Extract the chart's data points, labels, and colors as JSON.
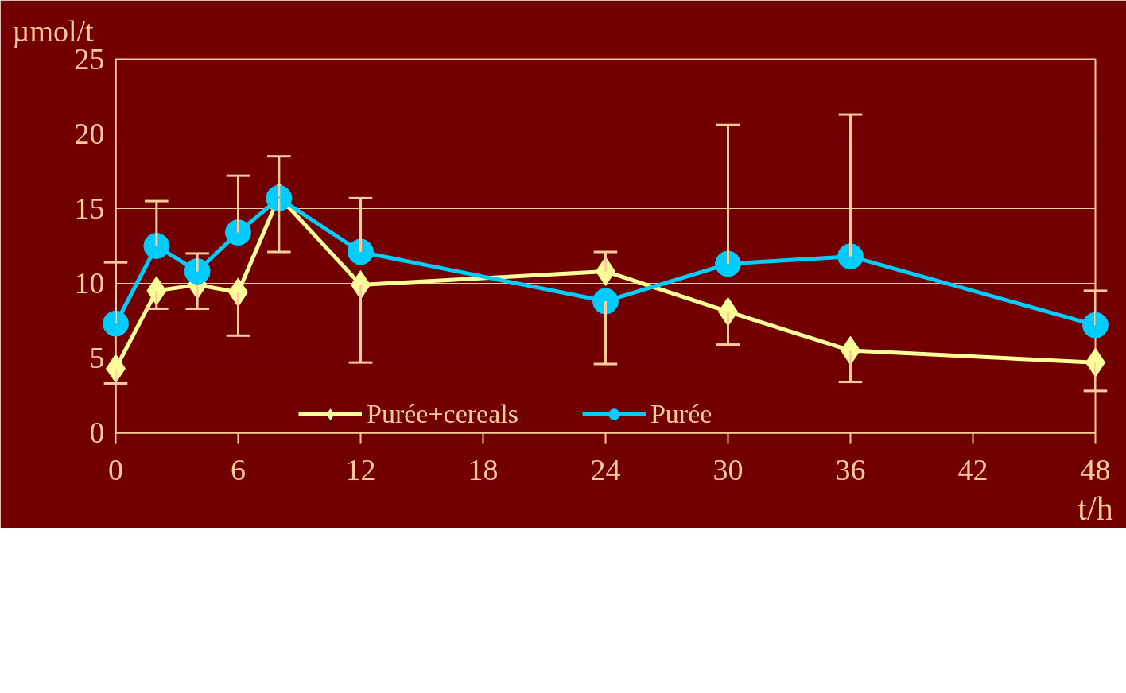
{
  "chart_data": {
    "type": "line",
    "xlabel": "t/h",
    "ylabel": "µmol/t",
    "x": [
      0,
      2,
      4,
      6,
      8,
      12,
      24,
      30,
      36,
      48
    ],
    "xlim": [
      0,
      48
    ],
    "xticks": [
      0,
      6,
      12,
      18,
      24,
      30,
      36,
      42,
      48
    ],
    "ylim": [
      0,
      25
    ],
    "yticks": [
      0,
      5,
      10,
      15,
      20,
      25
    ],
    "grid": "y",
    "legend": "bottom",
    "line_style": "solid",
    "series": [
      {
        "name": "Purée+cereals",
        "color": "#ffff99",
        "marker": "diamond",
        "values": [
          4.3,
          9.5,
          9.9,
          9.4,
          15.8,
          9.9,
          10.8,
          8.1,
          5.5,
          4.7
        ],
        "errors": [
          [
            3.3,
            4.3
          ],
          [
            8.3,
            9.5
          ],
          [
            8.3,
            9.9
          ],
          [
            6.5,
            9.4
          ],
          [
            15.8,
            18.5
          ],
          [
            4.7,
            9.9
          ],
          [
            10.8,
            12.1
          ],
          [
            5.9,
            8.1
          ],
          [
            3.4,
            5.5
          ],
          [
            2.8,
            4.7
          ]
        ]
      },
      {
        "name": "Purée",
        "color": "#00ccff",
        "marker": "circle",
        "values": [
          7.3,
          12.5,
          10.8,
          13.4,
          15.7,
          12.1,
          8.8,
          11.3,
          11.8,
          7.2
        ],
        "errors": [
          [
            7.3,
            11.4
          ],
          [
            12.5,
            15.5
          ],
          [
            10.8,
            12.0
          ],
          [
            13.4,
            17.2
          ],
          [
            12.1,
            15.7
          ],
          [
            12.1,
            15.7
          ],
          [
            4.6,
            8.8
          ],
          [
            11.3,
            20.6
          ],
          [
            11.8,
            21.3
          ],
          [
            7.2,
            9.5
          ]
        ]
      }
    ]
  }
}
